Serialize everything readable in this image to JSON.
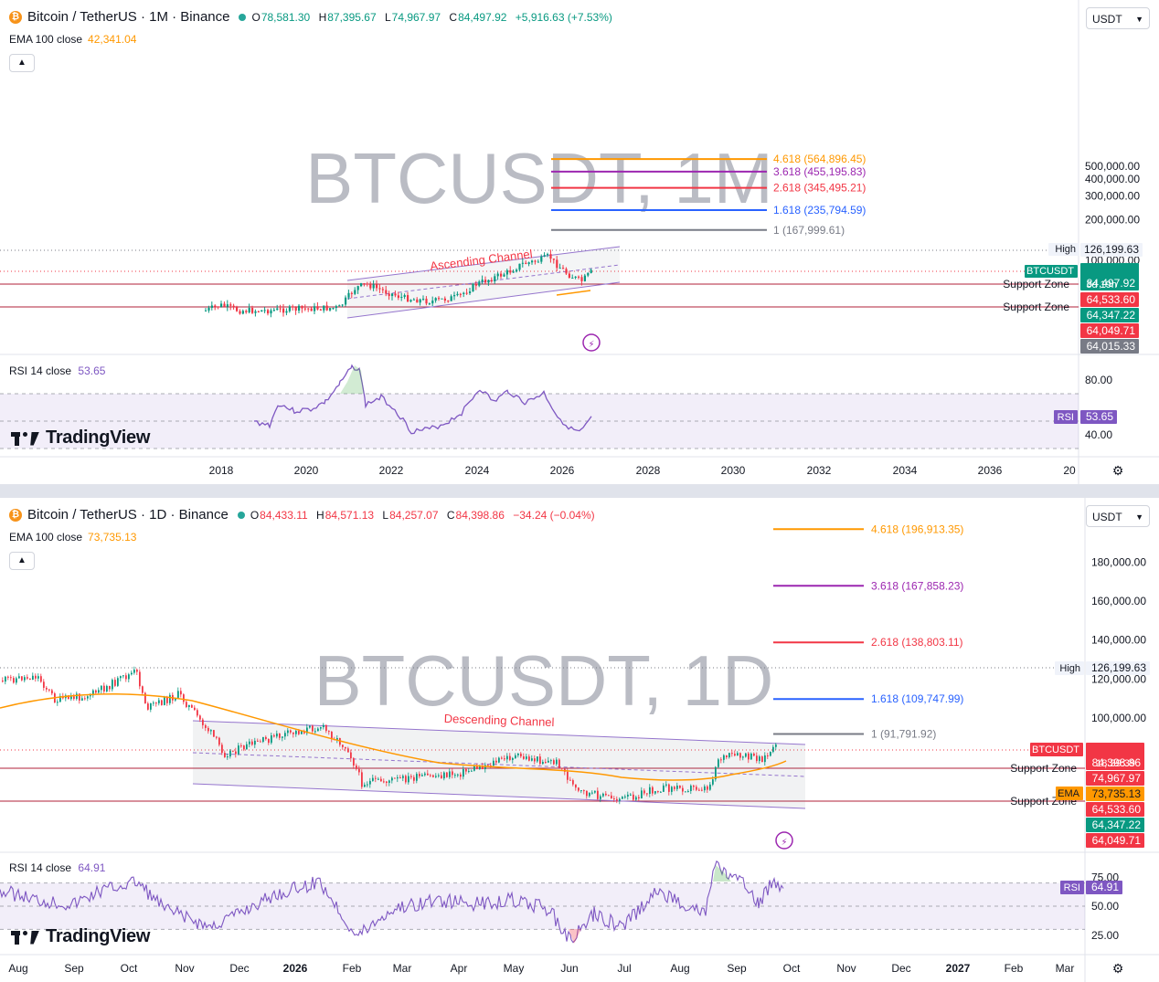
{
  "panels": [
    {
      "symbol": "Bitcoin / TetherUS · 1M · Binance",
      "coin_icon": "bitcoin-icon",
      "ohlc": {
        "o": "78,581.30",
        "h": "87,395.67",
        "l": "74,967.97",
        "c": "84,497.92",
        "chg": "+5,916.63 (+7.53%)",
        "dir": "up"
      },
      "ema_label": "EMA 100 close",
      "ema_value": "42,341.04",
      "currency": "USDT",
      "watermark": "BTCUSDT, 1M",
      "rsi_label": "RSI 14 close",
      "rsi_value": "53.65",
      "logo": "TradingView",
      "chart_data": {
        "type": "candlestick",
        "scale": "log",
        "yticks": [
          "500,000.00",
          "400,000.00",
          "300,000.00",
          "200,000.00",
          "100,000.00"
        ],
        "ytick_values": [
          500000,
          400000,
          300000,
          200000,
          100000
        ],
        "xticks": [
          "2018",
          "2020",
          "2022",
          "2024",
          "2026",
          "2028",
          "2030",
          "2032",
          "2034",
          "2036",
          "20"
        ],
        "fib_levels": [
          {
            "label": "4.618 (564,896.45)",
            "value": 564896.45,
            "color": "#ff9800"
          },
          {
            "label": "3.618 (455,195.83)",
            "value": 455195.83,
            "color": "#9c27b0"
          },
          {
            "label": "2.618 (345,495.21)",
            "value": 345495.21,
            "color": "#f23645"
          },
          {
            "label": "1.618 (235,794.59)",
            "value": 235794.59,
            "color": "#2962ff"
          },
          {
            "label": "1 (167,999.61)",
            "value": 167999.61,
            "color": "#787b86"
          }
        ],
        "annotations": [
          {
            "text": "Ascending Channel",
            "color": "#f23645"
          }
        ],
        "support_zones": [
          {
            "label": "Support Zone",
            "value": 74967.97
          },
          {
            "label": "Support Zone",
            "value": 64049.71
          }
        ],
        "price_tags": [
          {
            "label": "High",
            "value": "126,199.63",
            "kind": "high"
          },
          {
            "label": "BTCUSDT",
            "value": "84,497.92",
            "sub": "3d 19h",
            "kind": "last"
          },
          {
            "value": "64,533.60",
            "kind": "red"
          },
          {
            "value": "64,347.22",
            "kind": "green"
          },
          {
            "value": "64,049.71",
            "kind": "red"
          },
          {
            "value": "64,015.33",
            "kind": "gray"
          }
        ],
        "rsi": {
          "levels": [
            "80.00",
            "40.00"
          ],
          "value": 53.65,
          "tag": "RSI"
        }
      }
    },
    {
      "symbol": "Bitcoin / TetherUS · 1D · Binance",
      "coin_icon": "bitcoin-icon",
      "ohlc": {
        "o": "84,433.11",
        "h": "84,571.13",
        "l": "84,257.07",
        "c": "84,398.86",
        "chg": "−34.24 (−0.04%)",
        "dir": "dn"
      },
      "ema_label": "EMA 100 close",
      "ema_value": "73,735.13",
      "currency": "USDT",
      "watermark": "BTCUSDT, 1D",
      "rsi_label": "RSI 14 close",
      "rsi_value": "64.91",
      "logo": "TradingView",
      "chart_data": {
        "type": "candlestick",
        "scale": "linear",
        "yticks": [
          "180,000.00",
          "160,000.00",
          "140,000.00",
          "120,000.00",
          "100,000.00"
        ],
        "ytick_values": [
          180000,
          160000,
          140000,
          120000,
          100000
        ],
        "xticks": [
          "Aug",
          "Sep",
          "Oct",
          "Nov",
          "Dec",
          "2026",
          "Feb",
          "Mar",
          "Apr",
          "May",
          "Jun",
          "Jul",
          "Aug",
          "Sep",
          "Oct",
          "Nov",
          "Dec",
          "2027",
          "Feb",
          "Mar"
        ],
        "fib_levels": [
          {
            "label": "4.618 (196,913.35)",
            "value": 196913.35,
            "color": "#ff9800"
          },
          {
            "label": "3.618 (167,858.23)",
            "value": 167858.23,
            "color": "#9c27b0"
          },
          {
            "label": "2.618 (138,803.11)",
            "value": 138803.11,
            "color": "#f23645"
          },
          {
            "label": "1.618 (109,747.99)",
            "value": 109747.99,
            "color": "#2962ff"
          },
          {
            "label": "1 (91,791.92)",
            "value": 91791.92,
            "color": "#787b86"
          }
        ],
        "annotations": [
          {
            "text": "Descending Channel",
            "color": "#f23645"
          }
        ],
        "support_zones": [
          {
            "label": "Support Zone",
            "value": 74967.97
          },
          {
            "label": "Support Zone",
            "value": 64049.71
          }
        ],
        "price_tags": [
          {
            "label": "High",
            "value": "126,199.63",
            "kind": "high"
          },
          {
            "label": "BTCUSDT",
            "value": "84,398.86",
            "sub": "18:39:39",
            "kind": "lastred"
          },
          {
            "value": "74,967.97",
            "kind": "red"
          },
          {
            "label": "EMA",
            "value": "73,735.13",
            "kind": "ema"
          },
          {
            "value": "64,533.60",
            "kind": "red"
          },
          {
            "value": "64,347.22",
            "kind": "green"
          },
          {
            "value": "64,049.71",
            "kind": "red"
          }
        ],
        "rsi": {
          "levels": [
            "75.00",
            "50.00",
            "25.00"
          ],
          "value": 64.91,
          "tag": "RSI"
        }
      }
    }
  ]
}
